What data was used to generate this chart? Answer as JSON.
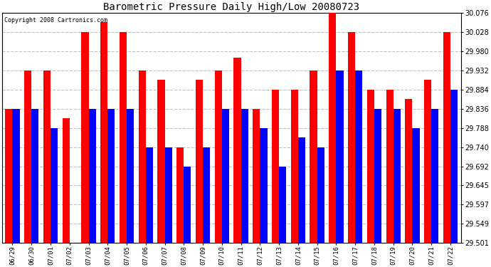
{
  "title": "Barometric Pressure Daily High/Low 20080723",
  "copyright": "Copyright 2008 Cartronics.com",
  "dates": [
    "06/29",
    "06/30",
    "07/01",
    "07/02",
    "07/03",
    "07/04",
    "07/05",
    "07/06",
    "07/07",
    "07/08",
    "07/09",
    "07/10",
    "07/11",
    "07/12",
    "07/13",
    "07/14",
    "07/15",
    "07/16",
    "07/17",
    "07/18",
    "07/19",
    "07/20",
    "07/21",
    "07/22"
  ],
  "highs": [
    29.836,
    29.932,
    29.932,
    29.812,
    30.028,
    30.052,
    30.028,
    29.932,
    29.908,
    29.74,
    29.908,
    29.932,
    29.964,
    29.836,
    29.884,
    29.884,
    29.932,
    30.076,
    30.028,
    29.884,
    29.884,
    29.86,
    29.908,
    30.028
  ],
  "lows": [
    29.836,
    29.836,
    29.788,
    29.501,
    29.836,
    29.836,
    29.836,
    29.74,
    29.74,
    29.692,
    29.74,
    29.836,
    29.836,
    29.788,
    29.692,
    29.764,
    29.74,
    29.932,
    29.932,
    29.836,
    29.836,
    29.788,
    29.836,
    29.884
  ],
  "high_color": "#ff0000",
  "low_color": "#0000ff",
  "bg_color": "#ffffff",
  "grid_color": "#c0c0c0",
  "ymin": 29.501,
  "ymax": 30.076,
  "yticks": [
    29.501,
    29.549,
    29.597,
    29.645,
    29.692,
    29.74,
    29.788,
    29.836,
    29.884,
    29.932,
    29.98,
    30.028,
    30.076
  ],
  "figwidth": 6.9,
  "figheight": 3.75,
  "dpi": 100
}
